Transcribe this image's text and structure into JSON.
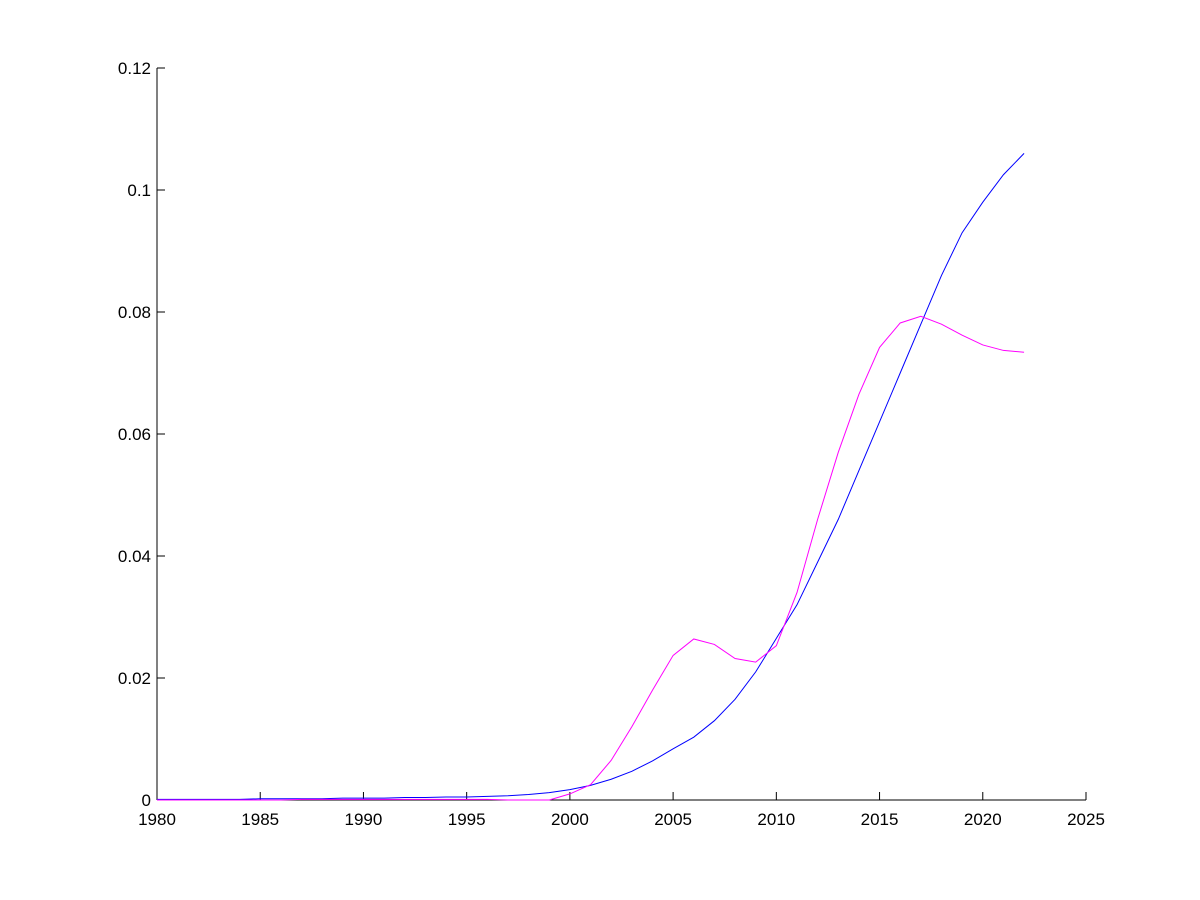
{
  "chart_data": {
    "type": "line",
    "x": [
      1980,
      1981,
      1982,
      1983,
      1984,
      1985,
      1986,
      1987,
      1988,
      1989,
      1990,
      1991,
      1992,
      1993,
      1994,
      1995,
      1996,
      1997,
      1998,
      1999,
      2000,
      2001,
      2002,
      2003,
      2004,
      2005,
      2006,
      2007,
      2008,
      2009,
      2010,
      2011,
      2012,
      2013,
      2014,
      2015,
      2016,
      2017,
      2018,
      2019,
      2020,
      2021,
      2022
    ],
    "series": [
      {
        "color": "#0000ff",
        "values": [
          0.0001,
          0.0001,
          0.0001,
          0.0001,
          0.0001,
          0.0002,
          0.0002,
          0.0002,
          0.0002,
          0.0003,
          0.0003,
          0.0003,
          0.0004,
          0.0004,
          0.0005,
          0.0005,
          0.0006,
          0.0007,
          0.0009,
          0.0012,
          0.0017,
          0.0024,
          0.0034,
          0.0047,
          0.0064,
          0.0084,
          0.0103,
          0.013,
          0.0165,
          0.021,
          0.0265,
          0.032,
          0.039,
          0.046,
          0.054,
          0.062,
          0.07,
          0.078,
          0.086,
          0.093,
          0.098,
          0.1025,
          0.106
        ]
      },
      {
        "color": "#ff00ff",
        "values": [
          0,
          0,
          0,
          0,
          0,
          0,
          0,
          0.0001,
          0.0001,
          0.0001,
          0.0001,
          0.0001,
          0.0001,
          0.0001,
          0.0001,
          0.0001,
          0.0001,
          0,
          0,
          0,
          0.001,
          0.0025,
          0.0065,
          0.012,
          0.018,
          0.0237,
          0.0264,
          0.0255,
          0.0232,
          0.0226,
          0.0253,
          0.034,
          0.046,
          0.057,
          0.0665,
          0.0742,
          0.0782,
          0.0793,
          0.078,
          0.0762,
          0.0746,
          0.0737,
          0.0734
        ]
      }
    ],
    "xlim": [
      1980,
      2025
    ],
    "xticks": [
      1980,
      1985,
      1990,
      1995,
      2000,
      2005,
      2010,
      2015,
      2020,
      2025
    ],
    "ylim": [
      0,
      0.12
    ],
    "yticks": [
      0,
      0.02,
      0.04,
      0.06,
      0.08,
      0.1,
      0.12
    ],
    "grid": false
  }
}
